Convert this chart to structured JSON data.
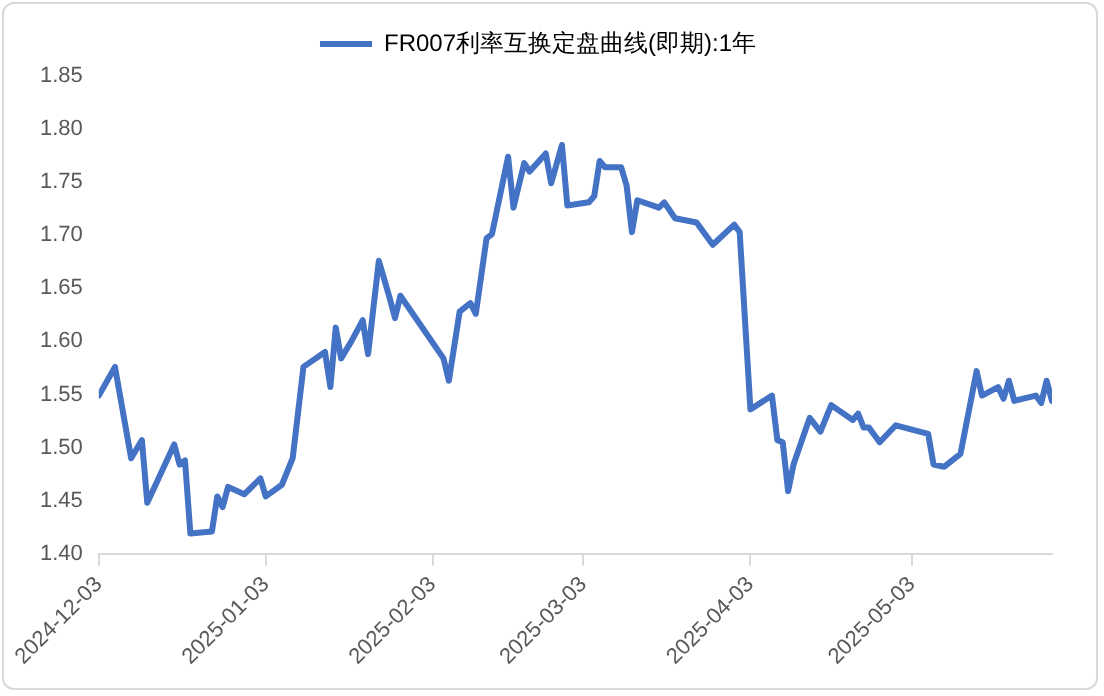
{
  "chart_data": {
    "type": "line",
    "legend": "top",
    "x": [
      "2024-12-03",
      "2024-12-06",
      "2024-12-09",
      "2024-12-11",
      "2024-12-12",
      "2024-12-17",
      "2024-12-18",
      "2024-12-19",
      "2024-12-20",
      "2024-12-24",
      "2024-12-25",
      "2024-12-26",
      "2024-12-27",
      "2024-12-30",
      "2025-01-02",
      "2025-01-03",
      "2025-01-06",
      "2025-01-08",
      "2025-01-10",
      "2025-01-14",
      "2025-01-15",
      "2025-01-16",
      "2025-01-17",
      "2025-01-19",
      "2025-01-21",
      "2025-01-22",
      "2025-01-24",
      "2025-01-26",
      "2025-01-27",
      "2025-01-28",
      "2025-02-05",
      "2025-02-06",
      "2025-02-08",
      "2025-02-10",
      "2025-02-11",
      "2025-02-13",
      "2025-02-14",
      "2025-02-17",
      "2025-02-18",
      "2025-02-20",
      "2025-02-21",
      "2025-02-24",
      "2025-02-25",
      "2025-02-27",
      "2025-02-28",
      "2025-03-04",
      "2025-03-05",
      "2025-03-06",
      "2025-03-07",
      "2025-03-10",
      "2025-03-11",
      "2025-03-12",
      "2025-03-13",
      "2025-03-17",
      "2025-03-18",
      "2025-03-20",
      "2025-03-24",
      "2025-03-27",
      "2025-03-31",
      "2025-04-01",
      "2025-04-03",
      "2025-04-07",
      "2025-04-08",
      "2025-04-09",
      "2025-04-10",
      "2025-04-11",
      "2025-04-14",
      "2025-04-16",
      "2025-04-18",
      "2025-04-22",
      "2025-04-23",
      "2025-04-24",
      "2025-04-25",
      "2025-04-27",
      "2025-04-30",
      "2025-05-06",
      "2025-05-07",
      "2025-05-09",
      "2025-05-12",
      "2025-05-15",
      "2025-05-16",
      "2025-05-19",
      "2025-05-20",
      "2025-05-21",
      "2025-05-22",
      "2025-05-26",
      "2025-05-27",
      "2025-05-28",
      "2025-05-29"
    ],
    "series": [
      {
        "name": "FR007利率互换定盘曲线(即期):1年",
        "color": "#4472c4",
        "values": [
          1.549,
          1.576,
          1.49,
          1.507,
          1.448,
          1.503,
          1.484,
          1.488,
          1.419,
          1.421,
          1.454,
          1.444,
          1.463,
          1.456,
          1.471,
          1.454,
          1.465,
          1.49,
          1.576,
          1.59,
          1.557,
          1.613,
          1.584,
          1.601,
          1.62,
          1.588,
          1.676,
          1.641,
          1.622,
          1.643,
          1.584,
          1.563,
          1.628,
          1.636,
          1.626,
          1.697,
          1.701,
          1.774,
          1.726,
          1.768,
          1.76,
          1.777,
          1.749,
          1.785,
          1.728,
          1.731,
          1.737,
          1.77,
          1.764,
          1.764,
          1.747,
          1.703,
          1.733,
          1.726,
          1.731,
          1.716,
          1.712,
          1.691,
          1.71,
          1.703,
          1.536,
          1.549,
          1.507,
          1.505,
          1.459,
          1.484,
          1.528,
          1.515,
          1.54,
          1.526,
          1.532,
          1.519,
          1.519,
          1.505,
          1.521,
          1.513,
          1.484,
          1.482,
          1.494,
          1.572,
          1.549,
          1.557,
          1.546,
          1.563,
          1.544,
          1.549,
          1.542,
          1.563,
          1.544
        ]
      }
    ],
    "xlim": [
      "2024-12-03",
      "2025-05-29"
    ],
    "xticks": [
      "2024-12-03",
      "2025-01-03",
      "2025-02-03",
      "2025-03-03",
      "2025-04-03",
      "2025-05-03"
    ],
    "ylim": [
      1.4,
      1.85
    ],
    "yticks": [
      {
        "value": 1.4,
        "label": "1.40"
      },
      {
        "value": 1.45,
        "label": "1.45"
      },
      {
        "value": 1.5,
        "label": "1.50"
      },
      {
        "value": 1.55,
        "label": "1.55"
      },
      {
        "value": 1.6,
        "label": "1.60"
      },
      {
        "value": 1.65,
        "label": "1.65"
      },
      {
        "value": 1.7,
        "label": "1.70"
      },
      {
        "value": 1.75,
        "label": "1.75"
      },
      {
        "value": 1.8,
        "label": "1.80"
      },
      {
        "value": 1.85,
        "label": "1.85"
      }
    ],
    "grid": false,
    "marker": "none",
    "line_style": "solid"
  }
}
